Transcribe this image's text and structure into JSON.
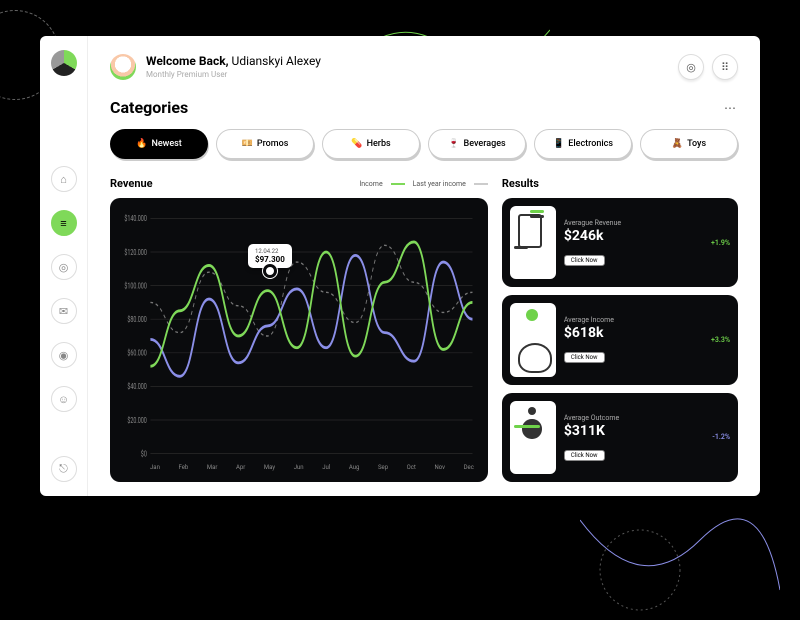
{
  "header": {
    "welcome_prefix": "Welcome Back,",
    "user_name": "Udianskyi Alexey",
    "subtitle": "Monthly Premium User"
  },
  "sidebar": {
    "items": [
      {
        "name": "home",
        "active": false
      },
      {
        "name": "analytics",
        "active": true
      },
      {
        "name": "orders",
        "active": false
      },
      {
        "name": "messages",
        "active": false
      },
      {
        "name": "security",
        "active": false
      },
      {
        "name": "profile",
        "active": false
      }
    ]
  },
  "categories": {
    "title": "Categories",
    "items": [
      {
        "icon": "🔥",
        "label": "Newest",
        "active": true
      },
      {
        "icon": "💴",
        "label": "Promos",
        "active": false
      },
      {
        "icon": "💊",
        "label": "Herbs",
        "active": false
      },
      {
        "icon": "🍷",
        "label": "Beverages",
        "active": false
      },
      {
        "icon": "📱",
        "label": "Electronics",
        "active": false
      },
      {
        "icon": "🧸",
        "label": "Toys",
        "active": false
      }
    ]
  },
  "revenue": {
    "title": "Revenue",
    "legend": {
      "income": "Income",
      "last_year": "Last year income"
    },
    "income_color": "#7fd959",
    "lastyear_color": "#8b8fe8",
    "lastyear_dash_color": "#777777",
    "chart_bg": "#0a0b0d",
    "ylabels": [
      "$140.000",
      "$120.000",
      "$100.000",
      "$80.000",
      "$60.000",
      "$40.000",
      "$20.000",
      "$0"
    ],
    "ylim": [
      0,
      140000
    ],
    "months": [
      "Jan",
      "Feb",
      "Mar",
      "Apr",
      "May",
      "Jun",
      "Jul",
      "Aug",
      "Sep",
      "Oct",
      "Nov",
      "Dec"
    ],
    "income_values": [
      52000,
      85000,
      112000,
      70000,
      97000,
      63000,
      120000,
      58000,
      102000,
      126000,
      62000,
      90000
    ],
    "lastyear_values": [
      68000,
      46000,
      92000,
      54000,
      76000,
      98000,
      63000,
      118000,
      72000,
      55000,
      114000,
      80000
    ],
    "lastyear_dash": [
      90000,
      72000,
      108000,
      88000,
      70000,
      114000,
      96000,
      78000,
      124000,
      102000,
      84000,
      96000
    ],
    "tooltip": {
      "date": "12.04.22",
      "value": "$97.300",
      "month_index": 4
    }
  },
  "results": {
    "title": "Results",
    "button_label": "Click Now",
    "cards": [
      {
        "label": "Averague Revenue",
        "value": "$246k",
        "delta": "+1.9%",
        "pos": true
      },
      {
        "label": "Average Income",
        "value": "$618k",
        "delta": "+3.3%",
        "pos": true
      },
      {
        "label": "Average Outcome",
        "value": "$311K",
        "delta": "-1.2%",
        "pos": false
      }
    ]
  }
}
